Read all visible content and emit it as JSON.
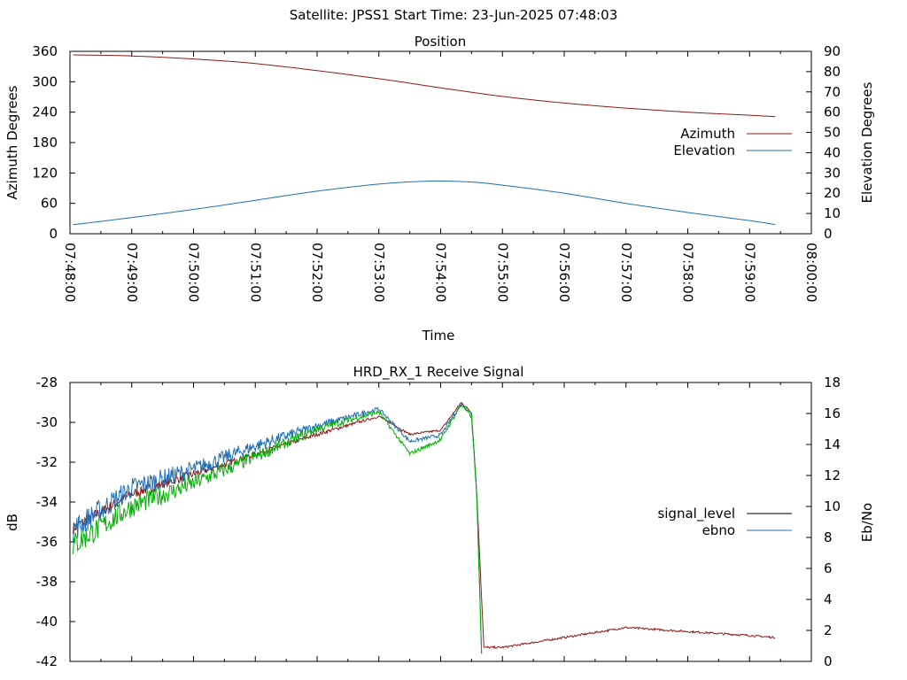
{
  "header": {
    "title": "Satellite: JPSS1    Start Time: 23-Jun-2025 07:48:03"
  },
  "chart_data": [
    {
      "type": "line",
      "title": "Position",
      "xlabel": "Time",
      "ylabel": "Azimuth Degrees",
      "y2label": "Elevation Degrees",
      "grid": false,
      "legend": "right",
      "xlim": [
        "07:48:00",
        "08:00:00"
      ],
      "ylim": [
        0,
        360
      ],
      "y2lim": [
        0,
        90
      ],
      "x_ticks": [
        "07:48:00",
        "07:49:00",
        "07:50:00",
        "07:51:00",
        "07:52:00",
        "07:53:00",
        "07:54:00",
        "07:55:00",
        "07:56:00",
        "07:57:00",
        "07:58:00",
        "07:59:00",
        "08:00:00"
      ],
      "y_ticks": [
        "0",
        "60",
        "120",
        "180",
        "240",
        "300",
        "360"
      ],
      "y2_ticks": [
        "0",
        "10",
        "20",
        "30",
        "40",
        "50",
        "60",
        "70",
        "80",
        "90"
      ],
      "series": [
        {
          "name": "Azimuth",
          "axis": "y",
          "color": "#8b1a1a",
          "x": [
            "07:48:03",
            "07:49:00",
            "07:50:00",
            "07:51:00",
            "07:52:00",
            "07:53:00",
            "07:54:00",
            "07:55:00",
            "07:56:00",
            "07:57:00",
            "07:58:00",
            "07:59:00",
            "07:59:25"
          ],
          "y": [
            353,
            351,
            345,
            336,
            322,
            306,
            288,
            271,
            258,
            248,
            240,
            234,
            231
          ]
        },
        {
          "name": "Elevation",
          "axis": "y2",
          "color": "#1f6fb5",
          "x": [
            "07:48:03",
            "07:49:00",
            "07:50:00",
            "07:51:00",
            "07:52:00",
            "07:53:00",
            "07:53:50",
            "07:54:30",
            "07:55:00",
            "07:56:00",
            "07:57:00",
            "07:58:00",
            "07:59:00",
            "07:59:25"
          ],
          "y": [
            4.5,
            8,
            12,
            16.5,
            21,
            24.5,
            26,
            25.5,
            24,
            20,
            15,
            10.5,
            6.5,
            4.5
          ]
        }
      ]
    },
    {
      "type": "line",
      "title": "HRD_RX_1 Receive Signal",
      "xlabel": "",
      "ylabel": "dB",
      "y2label": "Eb/No",
      "grid": false,
      "legend": "right",
      "ylim": [
        -42,
        -28
      ],
      "y2lim": [
        0,
        18
      ],
      "y_ticks": [
        "-42",
        "-40",
        "-38",
        "-36",
        "-34",
        "-32",
        "-30",
        "-28"
      ],
      "y2_ticks": [
        "0",
        "2",
        "4",
        "6",
        "8",
        "10",
        "12",
        "14",
        "16",
        "18"
      ],
      "series": [
        {
          "name": "signal_level",
          "axis": "y",
          "color": "#8b1a1a",
          "x": [
            "07:48:03",
            "07:49:00",
            "07:50:00",
            "07:51:00",
            "07:52:00",
            "07:53:00",
            "07:53:30",
            "07:54:00",
            "07:54:20",
            "07:54:30",
            "07:54:35",
            "07:54:42",
            "07:55:00",
            "07:56:00",
            "07:57:00",
            "07:58:00",
            "07:59:00",
            "07:59:25"
          ],
          "y": [
            -35.3,
            -33.6,
            -32.6,
            -31.6,
            -30.6,
            -29.7,
            -30.6,
            -30.4,
            -29.0,
            -29.5,
            -33.5,
            -41.3,
            -41.3,
            -40.8,
            -40.3,
            -40.5,
            -40.7,
            -40.8
          ]
        },
        {
          "name": "ebno",
          "axis": "y2",
          "color": "#1f6fb5",
          "x": [
            "07:48:03",
            "07:49:00",
            "07:50:00",
            "07:51:00",
            "07:52:00",
            "07:53:00",
            "07:53:30",
            "07:54:00",
            "07:54:20",
            "07:54:30",
            "07:54:35",
            "07:54:40"
          ],
          "y": [
            8.5,
            11.2,
            12.4,
            13.9,
            15.2,
            16.3,
            14.2,
            14.6,
            16.6,
            16.0,
            11.0,
            0
          ]
        },
        {
          "name": "",
          "axis": "y2",
          "color": "#00b000",
          "x": [
            "07:48:03",
            "07:49:00",
            "07:50:00",
            "07:51:00",
            "07:52:00",
            "07:53:00",
            "07:53:30",
            "07:54:00",
            "07:54:20",
            "07:54:30",
            "07:54:35",
            "07:54:40"
          ],
          "y": [
            7.5,
            10.0,
            11.5,
            13.2,
            15.0,
            16.1,
            13.4,
            14.3,
            16.6,
            15.8,
            10.8,
            0
          ]
        }
      ]
    }
  ]
}
